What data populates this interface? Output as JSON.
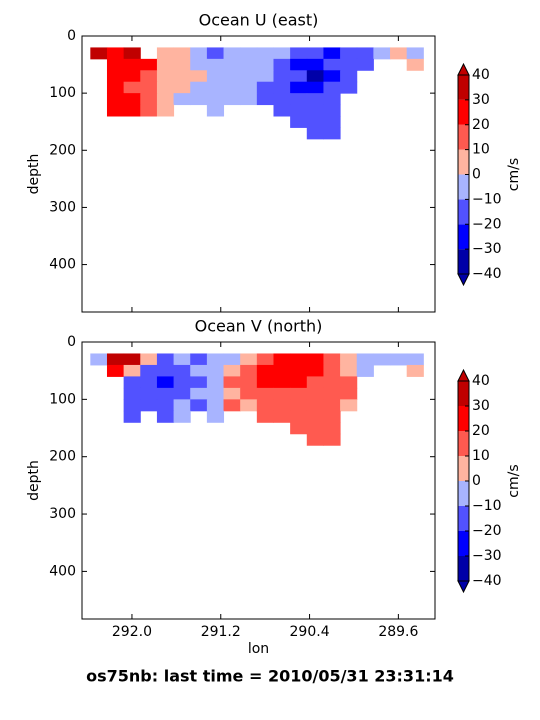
{
  "suptitle": "os75nb: last time = 2010/05/31 23:31:14",
  "chart_data": [
    {
      "type": "heatmap",
      "title": "Ocean U (east)",
      "ylabel": "depth",
      "x": [
        292.3,
        292.15,
        292.0,
        291.85,
        291.7,
        291.55,
        291.4,
        291.25,
        291.1,
        290.95,
        290.8,
        290.65,
        290.5,
        290.35,
        290.2,
        290.05,
        289.9,
        289.75,
        289.6,
        289.45
      ],
      "y": [
        30,
        50,
        70,
        90,
        110,
        130,
        150,
        170
      ],
      "z": [
        [
          35,
          25,
          30,
          null,
          5,
          5,
          -5,
          -15,
          -5,
          -5,
          -5,
          -5,
          -15,
          -15,
          -25,
          -15,
          -15,
          -5,
          5,
          -5
        ],
        [
          null,
          25,
          25,
          25,
          5,
          5,
          -5,
          -5,
          -5,
          -5,
          -5,
          -15,
          -25,
          -25,
          -15,
          -15,
          -15,
          null,
          null,
          5
        ],
        [
          null,
          25,
          25,
          15,
          5,
          5,
          5,
          -5,
          -5,
          -5,
          -5,
          -15,
          -15,
          -35,
          -25,
          -15,
          null,
          null,
          null,
          null
        ],
        [
          null,
          25,
          15,
          15,
          5,
          5,
          -5,
          -5,
          -5,
          -5,
          -15,
          -15,
          -25,
          -25,
          -15,
          -15,
          null,
          null,
          null,
          null
        ],
        [
          null,
          25,
          25,
          15,
          5,
          -5,
          -5,
          -5,
          -5,
          -5,
          -15,
          -15,
          -15,
          -15,
          -15,
          null,
          null,
          null,
          null,
          null
        ],
        [
          null,
          25,
          25,
          15,
          5,
          null,
          null,
          -5,
          null,
          null,
          null,
          -15,
          -15,
          -15,
          -15,
          null,
          null,
          null,
          null,
          null
        ],
        [
          null,
          null,
          null,
          null,
          null,
          null,
          null,
          null,
          null,
          null,
          null,
          null,
          -15,
          -15,
          -15,
          null,
          null,
          null,
          null,
          null
        ],
        [
          null,
          null,
          null,
          null,
          null,
          null,
          null,
          null,
          null,
          null,
          null,
          null,
          null,
          -15,
          -15,
          null,
          null,
          null,
          null,
          null
        ]
      ],
      "xlim": [
        292.45,
        289.27
      ],
      "ylim": [
        483,
        0
      ],
      "xticks": [
        292,
        291.2,
        290.4,
        289.6
      ],
      "yticks": [
        0,
        100,
        200,
        300,
        400
      ],
      "colorbar": {
        "label": "cm/s",
        "levels": [
          -40,
          -30,
          -20,
          -10,
          0,
          10,
          20,
          30,
          40
        ],
        "colors": [
          "#0000a8",
          "#0000ff",
          "#5252ff",
          "#a8b4ff",
          "#ffb4a0",
          "#ff5a50",
          "#ff0000",
          "#c00000"
        ],
        "ticks": [
          {
            "value": -40,
            "label": "−40"
          },
          {
            "value": -30,
            "label": "−30"
          },
          {
            "value": -20,
            "label": "−20"
          },
          {
            "value": -10,
            "label": "−10"
          },
          0,
          10,
          20,
          30,
          40
        ]
      }
    },
    {
      "type": "heatmap",
      "title": "Ocean V (north)",
      "xlabel": "lon",
      "ylabel": "depth",
      "x": [
        292.3,
        292.15,
        292.0,
        291.85,
        291.7,
        291.55,
        291.4,
        291.25,
        291.1,
        290.95,
        290.8,
        290.65,
        290.5,
        290.35,
        290.2,
        290.05,
        289.9,
        289.75,
        289.6,
        289.45
      ],
      "y": [
        30,
        50,
        70,
        90,
        110,
        130,
        150,
        170
      ],
      "z": [
        [
          -5,
          35,
          35,
          5,
          -15,
          -5,
          -15,
          -5,
          -5,
          5,
          15,
          25,
          25,
          25,
          15,
          5,
          -5,
          -5,
          -5,
          -5
        ],
        [
          null,
          25,
          5,
          -15,
          -15,
          -15,
          -5,
          -5,
          5,
          15,
          25,
          25,
          25,
          25,
          15,
          5,
          -5,
          null,
          null,
          5
        ],
        [
          null,
          null,
          -15,
          -15,
          -25,
          -15,
          -15,
          -5,
          15,
          15,
          25,
          25,
          25,
          15,
          15,
          15,
          null,
          null,
          null,
          null
        ],
        [
          null,
          null,
          -15,
          -15,
          -15,
          -15,
          -5,
          -5,
          5,
          15,
          15,
          15,
          15,
          15,
          15,
          15,
          null,
          null,
          null,
          null
        ],
        [
          null,
          null,
          -15,
          -15,
          -15,
          -5,
          -15,
          -5,
          15,
          5,
          15,
          15,
          15,
          15,
          15,
          5,
          null,
          null,
          null,
          null
        ],
        [
          null,
          null,
          -15,
          null,
          -15,
          -5,
          null,
          -5,
          null,
          null,
          15,
          15,
          15,
          15,
          15,
          null,
          null,
          null,
          null,
          null
        ],
        [
          null,
          null,
          null,
          null,
          null,
          null,
          null,
          null,
          null,
          null,
          null,
          null,
          15,
          15,
          15,
          null,
          null,
          null,
          null,
          null
        ],
        [
          null,
          null,
          null,
          null,
          null,
          null,
          null,
          null,
          null,
          null,
          null,
          null,
          null,
          15,
          15,
          null,
          null,
          null,
          null,
          null
        ]
      ],
      "xlim": [
        292.45,
        289.27
      ],
      "ylim": [
        483,
        0
      ],
      "xticks": [
        {
          "value": 292,
          "label": "292.0"
        },
        291.2,
        290.4,
        289.6
      ],
      "yticks": [
        0,
        100,
        200,
        300,
        400
      ],
      "colorbar": {
        "label": "cm/s",
        "levels": [
          -40,
          -30,
          -20,
          -10,
          0,
          10,
          20,
          30,
          40
        ],
        "colors": [
          "#0000a8",
          "#0000ff",
          "#5252ff",
          "#a8b4ff",
          "#ffb4a0",
          "#ff5a50",
          "#ff0000",
          "#c00000"
        ],
        "ticks": [
          {
            "value": -40,
            "label": "−40"
          },
          {
            "value": -30,
            "label": "−30"
          },
          {
            "value": -20,
            "label": "−20"
          },
          {
            "value": -10,
            "label": "−10"
          },
          0,
          10,
          20,
          30,
          40
        ]
      }
    }
  ]
}
